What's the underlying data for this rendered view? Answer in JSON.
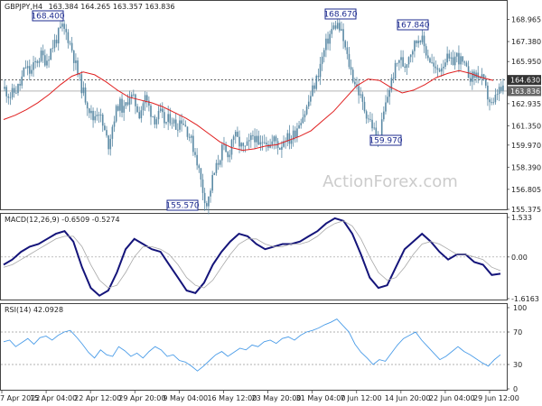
{
  "header": {
    "symbol": "GBPJPY,H4",
    "ohlc": "163.384 164.265 163.357 163.836"
  },
  "watermark": "ActionForex.com",
  "colors": {
    "candle": "#5b8aa5",
    "ma": "#e02020",
    "macd_main": "#14147a",
    "macd_signal": "#a8a8a8",
    "rsi": "#4a9ce8",
    "label_border": "#1d2b8f",
    "grid_dash": "#b4b4b4"
  },
  "chart_data": [
    {
      "type": "candlestick",
      "name": "GBPJPY,H4 price",
      "ylim": [
        155.375,
        169.965
      ],
      "y_ticks": [
        "168.965",
        "167.380",
        "165.950",
        "164.630",
        "163.836",
        "162.935",
        "161.350",
        "159.970",
        "158.390",
        "156.805",
        "155.375"
      ],
      "reference_line": 164.63,
      "current_price": 163.836,
      "annotations": [
        {
          "label": "168.400",
          "value": 168.4,
          "at": "15 Apr 2022"
        },
        {
          "label": "155.570",
          "value": 155.57,
          "at": "9 May 2022"
        },
        {
          "label": "168.670",
          "value": 168.67,
          "at": "7 Jun 12:00"
        },
        {
          "label": "159.970",
          "value": 159.97,
          "at": "14 Jun 2022"
        },
        {
          "label": "167.840",
          "value": 167.84,
          "at": "20 Jun 2022"
        }
      ],
      "close_path": [
        164.0,
        163.5,
        163.8,
        164.3,
        165.6,
        165.1,
        165.9,
        166.4,
        166.0,
        166.9,
        167.6,
        168.4,
        167.9,
        166.8,
        165.2,
        163.9,
        162.9,
        161.8,
        162.6,
        161.2,
        160.0,
        161.8,
        163.0,
        162.4,
        163.6,
        163.1,
        162.2,
        163.4,
        162.5,
        161.8,
        162.2,
        161.5,
        162.0,
        161.3,
        161.9,
        161.2,
        160.2,
        159.0,
        157.0,
        155.6,
        157.5,
        158.6,
        159.8,
        159.0,
        160.8,
        160.2,
        159.6,
        160.0,
        160.8,
        159.7,
        160.6,
        159.9,
        160.4,
        159.8,
        160.6,
        160.3,
        161.0,
        161.9,
        162.4,
        163.6,
        164.6,
        166.0,
        167.3,
        168.2,
        168.67,
        167.8,
        166.2,
        164.9,
        164.0,
        162.8,
        162.0,
        161.2,
        160.0,
        162.2,
        163.9,
        165.2,
        166.2,
        165.6,
        166.6,
        167.2,
        167.84,
        166.8,
        166.0,
        165.2,
        165.6,
        166.2,
        165.8,
        166.4,
        165.9,
        165.2,
        164.8,
        165.1,
        164.6,
        163.5,
        162.6,
        163.9,
        163.836
      ],
      "ma_path": [
        161.8,
        162.1,
        162.5,
        163.0,
        163.6,
        164.3,
        164.9,
        165.2,
        165.0,
        164.5,
        163.9,
        163.4,
        163.2,
        163.0,
        162.7,
        162.3,
        161.9,
        161.4,
        160.8,
        160.2,
        159.8,
        159.6,
        159.7,
        159.9,
        160.0,
        160.3,
        160.6,
        161.0,
        161.7,
        162.4,
        163.3,
        164.2,
        164.7,
        164.6,
        164.1,
        163.7,
        163.9,
        164.3,
        164.8,
        165.1,
        165.3,
        165.1,
        164.8,
        164.6
      ]
    },
    {
      "type": "line",
      "name": "MACD(12,26,9)",
      "title": "MACD(12,26,9) -0.6509 -0.5274",
      "ylim": [
        -1.6163,
        1.533
      ],
      "y_ticks": [
        "1.533",
        "0.00",
        "-1.6163"
      ],
      "series": [
        {
          "role": "main",
          "values": [
            -0.3,
            -0.1,
            0.2,
            0.4,
            0.5,
            0.7,
            0.9,
            1.0,
            0.6,
            -0.4,
            -1.2,
            -1.5,
            -1.3,
            -0.6,
            0.3,
            0.7,
            0.5,
            0.3,
            0.2,
            -0.3,
            -0.8,
            -1.3,
            -1.4,
            -1.0,
            -0.3,
            0.2,
            0.6,
            0.9,
            0.8,
            0.5,
            0.3,
            0.4,
            0.5,
            0.5,
            0.6,
            0.8,
            1.0,
            1.3,
            1.5,
            1.4,
            0.9,
            0.1,
            -0.8,
            -1.2,
            -1.1,
            -0.4,
            0.3,
            0.6,
            0.9,
            0.6,
            0.2,
            -0.1,
            0.1,
            0.1,
            -0.2,
            -0.3,
            -0.7,
            -0.65
          ]
        },
        {
          "role": "signal",
          "values": [
            -0.4,
            -0.3,
            -0.1,
            0.1,
            0.3,
            0.5,
            0.7,
            0.8,
            0.8,
            0.4,
            -0.3,
            -0.9,
            -1.2,
            -1.1,
            -0.6,
            0.0,
            0.4,
            0.4,
            0.3,
            0.1,
            -0.3,
            -0.8,
            -1.1,
            -1.2,
            -0.9,
            -0.4,
            0.1,
            0.5,
            0.7,
            0.7,
            0.5,
            0.4,
            0.4,
            0.5,
            0.5,
            0.6,
            0.8,
            1.1,
            1.3,
            1.4,
            1.2,
            0.7,
            0.0,
            -0.6,
            -0.9,
            -0.8,
            -0.4,
            0.1,
            0.5,
            0.6,
            0.5,
            0.3,
            0.1,
            0.1,
            0.0,
            -0.1,
            -0.4,
            -0.53
          ]
        }
      ]
    },
    {
      "type": "line",
      "name": "RSI(14)",
      "title": "RSI(14) 42.0928",
      "ylim": [
        0,
        100
      ],
      "y_ticks": [
        "100",
        "70",
        "30",
        "0"
      ],
      "levels": [
        70,
        30
      ],
      "series": [
        {
          "role": "rsi",
          "values": [
            58,
            60,
            52,
            57,
            62,
            55,
            63,
            65,
            60,
            66,
            70,
            72,
            64,
            55,
            45,
            38,
            48,
            42,
            40,
            52,
            47,
            40,
            44,
            38,
            46,
            52,
            48,
            40,
            42,
            35,
            33,
            28,
            22,
            28,
            35,
            42,
            46,
            40,
            45,
            50,
            48,
            54,
            52,
            58,
            60,
            56,
            62,
            64,
            60,
            66,
            70,
            72,
            75,
            79,
            82,
            86,
            78,
            70,
            55,
            45,
            38,
            30,
            36,
            34,
            44,
            54,
            62,
            66,
            70,
            60,
            52,
            44,
            36,
            40,
            46,
            52,
            46,
            42,
            37,
            32,
            28,
            36,
            42
          ]
        }
      ]
    }
  ],
  "x_axis": {
    "ticks": [
      "7 Apr 2022",
      "15 Apr 04:00",
      "22 Apr 12:00",
      "29 Apr 20:00",
      "9 May 04:00",
      "16 May 12:00",
      "23 May 20:00",
      "31 May 04:00",
      "7 Jun 12:00",
      "14 Jun 20:00",
      "22 Jun 04:00",
      "29 Jun 12:00"
    ]
  }
}
